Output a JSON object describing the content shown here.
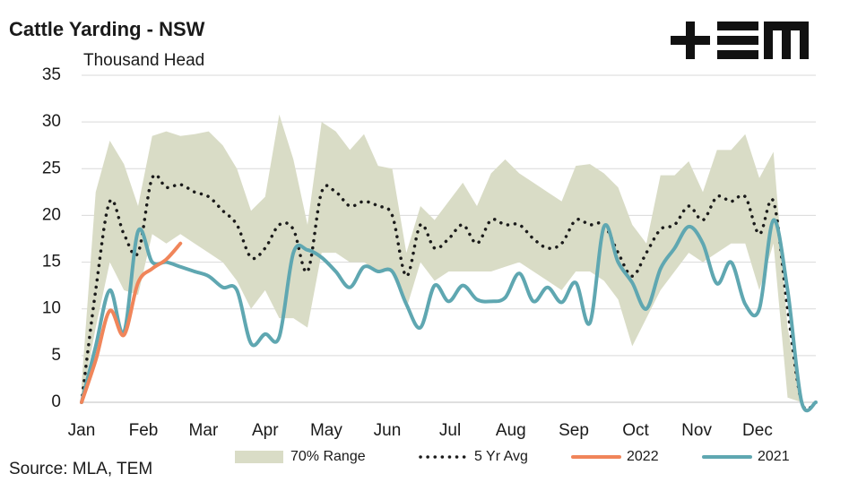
{
  "chart_data": {
    "type": "line",
    "title": "Cattle Yarding - NSW",
    "subtitle": "Thousand Head",
    "source": "Source: MLA, TEM",
    "x": [
      0,
      1,
      2,
      3,
      4,
      5,
      6,
      7,
      8,
      9,
      10,
      11,
      12,
      13,
      14,
      15,
      16,
      17,
      18,
      19,
      20,
      21,
      22,
      23,
      24,
      25,
      26,
      27,
      28,
      29,
      30,
      31,
      32,
      33,
      34,
      35,
      36,
      37,
      38,
      39,
      40,
      41,
      42,
      43,
      44,
      45,
      46,
      47,
      48,
      49,
      50,
      51,
      52
    ],
    "xlim": [
      0,
      52
    ],
    "xticks": [
      {
        "value": 0,
        "label": "Jan"
      },
      {
        "value": 4.38,
        "label": "Feb"
      },
      {
        "value": 8.63,
        "label": "Mar"
      },
      {
        "value": 13.0,
        "label": "Apr"
      },
      {
        "value": 17.33,
        "label": "May"
      },
      {
        "value": 21.65,
        "label": "Jun"
      },
      {
        "value": 26.1,
        "label": "Jul"
      },
      {
        "value": 30.4,
        "label": "Aug"
      },
      {
        "value": 34.86,
        "label": "Sep"
      },
      {
        "value": 39.24,
        "label": "Oct"
      },
      {
        "value": 43.56,
        "label": "Nov"
      },
      {
        "value": 47.87,
        "label": "Dec"
      }
    ],
    "ylim": [
      0,
      35
    ],
    "yticks": [
      0,
      5,
      10,
      15,
      20,
      25,
      30,
      35
    ],
    "grid": true,
    "legend": "bottom",
    "series": [
      {
        "name": "70% Range",
        "kind": "band",
        "color": "#d9dcc6",
        "low": [
          0,
          8,
          15,
          12,
          11.5,
          18,
          17,
          18,
          17,
          16,
          15,
          13,
          10,
          12,
          9,
          9,
          8,
          16,
          16,
          15,
          15,
          14,
          14,
          10,
          15,
          13,
          14,
          14,
          14,
          14,
          14.5,
          15,
          14,
          13,
          12,
          14,
          14,
          13,
          11,
          6,
          9,
          12,
          14,
          16,
          15,
          16,
          17,
          17,
          12,
          17,
          0.5,
          0,
          0
        ],
        "high": [
          2,
          22.5,
          28,
          25.5,
          21,
          28.5,
          29,
          28.5,
          28.7,
          29,
          27.5,
          25,
          20.5,
          22,
          30.8,
          26,
          19,
          30,
          29,
          27,
          28.7,
          25.3,
          25,
          16,
          21,
          19.5,
          21.5,
          23.5,
          21,
          24.5,
          26,
          24.5,
          23.5,
          22.5,
          21.5,
          25.3,
          25.5,
          24.5,
          23,
          19,
          17,
          24.3,
          24.3,
          25.8,
          22.5,
          27,
          27,
          28.7,
          24,
          26.8,
          8,
          0,
          0
        ]
      },
      {
        "name": "5 Yr Avg",
        "kind": "line",
        "style": "dotted",
        "color": "#1a1a1a",
        "values": [
          0,
          12,
          21.5,
          18,
          16,
          24,
          23,
          23.3,
          22.5,
          22,
          20.5,
          19,
          15.5,
          16.5,
          19,
          18.5,
          14,
          22.5,
          22.5,
          21,
          21.5,
          21,
          20,
          13.5,
          19,
          16.5,
          17.5,
          19,
          17,
          19.5,
          19,
          19,
          17.5,
          16.5,
          17,
          19.5,
          19,
          19,
          16,
          13.5,
          16,
          18.5,
          19,
          21,
          19.5,
          22,
          21.5,
          22,
          18,
          21.5,
          10,
          0,
          0
        ]
      },
      {
        "name": "2022",
        "kind": "line",
        "style": "solid",
        "color": "#f0855a",
        "values": [
          0,
          4.5,
          9.8,
          7.2,
          12.8,
          14.3,
          15.3,
          17,
          null,
          null,
          null,
          null,
          null,
          null,
          null,
          null,
          null,
          null,
          null,
          null,
          null,
          null,
          null,
          null,
          null,
          null,
          null,
          null,
          null,
          null,
          null,
          null,
          null,
          null,
          null,
          null,
          null,
          null,
          null,
          null,
          null,
          null,
          null,
          null,
          null,
          null,
          null,
          null,
          null,
          null,
          null,
          null,
          null
        ]
      },
      {
        "name": "2021",
        "kind": "line",
        "style": "solid",
        "color": "#5fa7b1",
        "values": [
          0,
          6,
          12,
          7.5,
          18.3,
          15,
          15,
          14.5,
          14,
          13.5,
          12.3,
          12,
          6.3,
          7.3,
          7,
          16,
          16.3,
          15.5,
          14,
          12.3,
          14.5,
          14,
          14,
          10.5,
          8,
          12.5,
          10.8,
          12.5,
          11,
          10.8,
          11.2,
          13.8,
          10.8,
          12.3,
          10.7,
          12.8,
          8.5,
          18.8,
          15,
          12.8,
          10,
          14.3,
          16.5,
          18.8,
          17,
          12.7,
          15,
          10.5,
          10,
          19.5,
          12,
          0,
          0
        ]
      }
    ]
  }
}
